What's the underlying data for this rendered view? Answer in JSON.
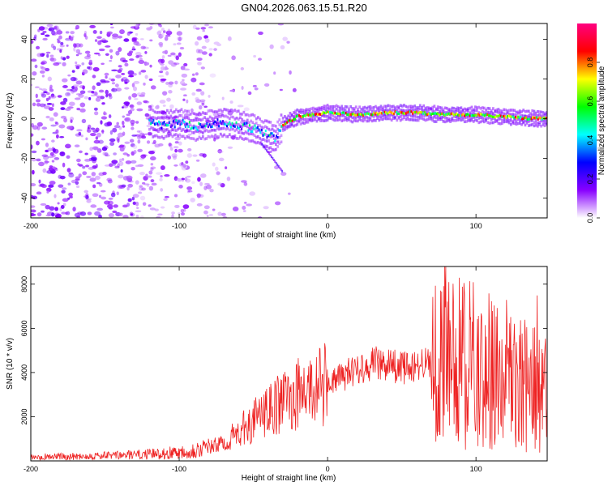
{
  "title": "GN04.2026.063.15.51.R20",
  "chart_data": [
    {
      "type": "heatmap",
      "title": "GN04.2026.063.15.51.R20",
      "xlabel": "Height of straight line (km)",
      "ylabel": "Frequency (Hz)",
      "xlim": [
        -200,
        148
      ],
      "ylim": [
        -50,
        48
      ],
      "xticks": [
        -200,
        -100,
        0,
        100
      ],
      "yticks": [
        -40,
        -20,
        0,
        20,
        40
      ],
      "colorbar": {
        "label": "Normalized spectral amplitude",
        "range": [
          0,
          1
        ],
        "ticks": [
          "0.0",
          "0.2",
          "0.4",
          "0.6",
          "0.8"
        ],
        "colors": [
          "#ffffff",
          "#8800ff",
          "#0000ff",
          "#00ffff",
          "#00ff00",
          "#ffff00",
          "#ff0000",
          "#ff0080"
        ]
      },
      "signal_track": {
        "description": "frequency ridge vs height",
        "x": [
          -120,
          -110,
          -100,
          -90,
          -80,
          -70,
          -60,
          -50,
          -45,
          -40,
          -35,
          -30,
          -20,
          -10,
          0,
          20,
          40,
          60,
          80,
          100,
          120,
          140,
          148
        ],
        "y": [
          -2,
          -3,
          -2,
          -4,
          -3,
          -2,
          -3,
          -5,
          -7,
          -8,
          -10,
          -3,
          1,
          2,
          3,
          2,
          3,
          3,
          2,
          2,
          1,
          0,
          0
        ]
      },
      "noise_region": {
        "x_range": [
          -200,
          -60
        ],
        "freq_range": [
          -50,
          48
        ]
      }
    },
    {
      "type": "line",
      "xlabel": "Height of straight line (km)",
      "ylabel": "SNR (10 * v/v)",
      "xlim": [
        -200,
        148
      ],
      "ylim": [
        0,
        8800
      ],
      "xticks": [
        -200,
        -100,
        0,
        100
      ],
      "yticks": [
        2000,
        4000,
        6000,
        8000
      ],
      "series": [
        {
          "name": "SNR",
          "color": "#ee2222",
          "x": [
            -200,
            -180,
            -160,
            -140,
            -120,
            -100,
            -80,
            -70,
            -60,
            -50,
            -40,
            -30,
            -20,
            -10,
            0,
            10,
            20,
            30,
            40,
            50,
            60,
            70,
            80,
            90,
            100,
            110,
            120,
            130,
            140,
            148
          ],
          "y": [
            200,
            200,
            220,
            250,
            300,
            400,
            600,
            800,
            1300,
            1800,
            2200,
            2700,
            3000,
            3300,
            3500,
            3800,
            4200,
            4400,
            4400,
            4200,
            4300,
            4500,
            4800,
            4600,
            4200,
            4000,
            3600,
            3500,
            3200,
            3000
          ]
        }
      ]
    }
  ]
}
